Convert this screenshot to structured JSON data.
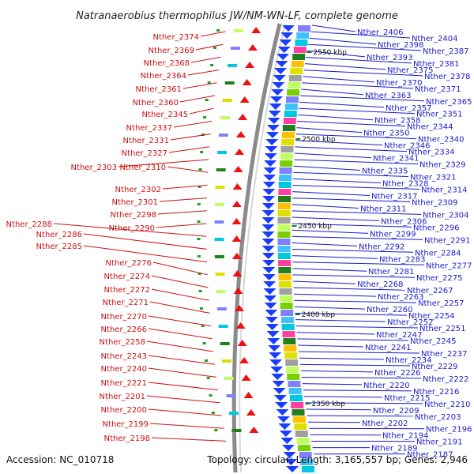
{
  "title": "Natranaerobius thermophilus JW/NM-WN-LF, complete genome",
  "accession": "Accession: NC_010718",
  "topology": "Topology: circular; Length: 3,165,557 bp; Genes: 2,946",
  "colors": {
    "left_label": "#cc1111",
    "right_label": "#1a1acc",
    "backbone": "#8a8a8a"
  },
  "kbp_marks": [
    "2550 kbp",
    "2500 kbp",
    "2450 kbp",
    "2400 kbp",
    "2350 kbp"
  ],
  "left_genes": [
    "Nther_2374",
    "Nther_2369",
    "Nther_2368",
    "Nther_2364",
    "Nther_2361",
    "Nther_2360",
    "Nther_2345",
    "Nther_2337",
    "Nther_2331",
    "Nther_2327",
    "Nther_2303",
    "Nther_2310",
    "Nther_2302",
    "Nther_2301",
    "Nther_2298",
    "Nther_2290",
    "Nther_2288",
    "Nther_2286",
    "Nther_2285",
    "Nther_2276",
    "Nther_2274",
    "Nther_2272",
    "Nther_2271",
    "Nther_2270",
    "Nther_2266",
    "Nther_2258",
    "Nther_2243",
    "Nther_2240",
    "Nther_2221",
    "Nther_2201",
    "Nther_2200",
    "Nther_2199",
    "Nther_2198"
  ],
  "right_genes": [
    "Nther_2406",
    "Nther_2404",
    "Nther_2398",
    "Nther_2387",
    "Nther_2393",
    "Nther_2381",
    "Nther_2375",
    "Nther_2378",
    "Nther_2370",
    "Nther_2371",
    "Nther_2363",
    "Nther_2365",
    "Nther_2357",
    "Nther_2351",
    "Nther_2358",
    "Nther_2344",
    "Nther_2350",
    "Nther_2340",
    "Nther_2346",
    "Nther_2334",
    "Nther_2341",
    "Nther_2329",
    "Nther_2335",
    "Nther_2321",
    "Nther_2328",
    "Nther_2314",
    "Nther_2317",
    "Nther_2309",
    "Nther_2311",
    "Nther_2304",
    "Nther_2306",
    "Nther_2296",
    "Nther_2299",
    "Nther_2291",
    "Nther_2292",
    "Nther_2284",
    "Nther_2283",
    "Nther_2277",
    "Nther_2281",
    "Nther_2275",
    "Nther_2268",
    "Nther_2267",
    "Nther_2263",
    "Nther_2257",
    "Nther_2260",
    "Nther_2254",
    "Nther_2252",
    "Nther_2251",
    "Nther_2247",
    "Nther_2245",
    "Nther_2241",
    "Nther_2237",
    "Nther_2234",
    "Nther_2229",
    "Nther_2226",
    "Nther_2222",
    "Nther_2220",
    "Nther_2216",
    "Nther_2215",
    "Nther_2210",
    "Nther_2209",
    "Nther_2203",
    "Nther_2202",
    "Nther_2196",
    "Nther_2194",
    "Nther_2191",
    "Nther_2189",
    "Nther_2187"
  ]
}
